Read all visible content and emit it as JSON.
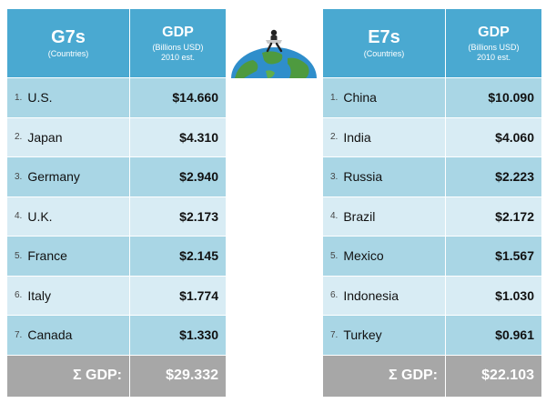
{
  "chart_data": [
    {
      "type": "table",
      "group_title": "G7s",
      "group_subtitle": "(Countries)",
      "value_title": "GDP",
      "value_subtitle_1": "(Billions USD)",
      "value_subtitle_2": "2010 est.",
      "rows": [
        {
          "rank": "1.",
          "country": "U.S.",
          "gdp_label": "$14.660",
          "gdp": 14.66
        },
        {
          "rank": "2.",
          "country": "Japan",
          "gdp_label": "$4.310",
          "gdp": 4.31
        },
        {
          "rank": "3.",
          "country": "Germany",
          "gdp_label": "$2.940",
          "gdp": 2.94
        },
        {
          "rank": "4.",
          "country": "U.K.",
          "gdp_label": "$2.173",
          "gdp": 2.173
        },
        {
          "rank": "5.",
          "country": "France",
          "gdp_label": "$2.145",
          "gdp": 2.145
        },
        {
          "rank": "6.",
          "country": "Italy",
          "gdp_label": "$1.774",
          "gdp": 1.774
        },
        {
          "rank": "7.",
          "country": "Canada",
          "gdp_label": "$1.330",
          "gdp": 1.33
        }
      ],
      "total_label": "Σ GDP:",
      "total_value": "$29.332"
    },
    {
      "type": "table",
      "group_title": "E7s",
      "group_subtitle": "(Countries)",
      "value_title": "GDP",
      "value_subtitle_1": "(Billions USD)",
      "value_subtitle_2": "2010 est.",
      "rows": [
        {
          "rank": "1.",
          "country": "China",
          "gdp_label": "$10.090",
          "gdp": 10.09
        },
        {
          "rank": "2.",
          "country": "India",
          "gdp_label": "$4.060",
          "gdp": 4.06
        },
        {
          "rank": "3.",
          "country": "Russia",
          "gdp_label": "$2.223",
          "gdp": 2.223
        },
        {
          "rank": "4.",
          "country": "Brazil",
          "gdp_label": "$2.172",
          "gdp": 2.172
        },
        {
          "rank": "5.",
          "country": "Mexico",
          "gdp_label": "$1.567",
          "gdp": 1.567
        },
        {
          "rank": "6.",
          "country": "Indonesia",
          "gdp_label": "$1.030",
          "gdp": 1.03
        },
        {
          "rank": "7.",
          "country": "Turkey",
          "gdp_label": "$0.961",
          "gdp": 0.961
        }
      ],
      "total_label": "Σ GDP:",
      "total_value": "$22.103"
    }
  ],
  "colors": {
    "header": "#4aa9d1",
    "row_dark": "#a9d6e5",
    "row_light": "#d8ecf4",
    "total_row": "#a7a7a7",
    "globe_ocean": "#2f8ecb",
    "globe_land": "#4e9a3f"
  },
  "icons": {
    "globe": "globe-with-person-icon"
  }
}
